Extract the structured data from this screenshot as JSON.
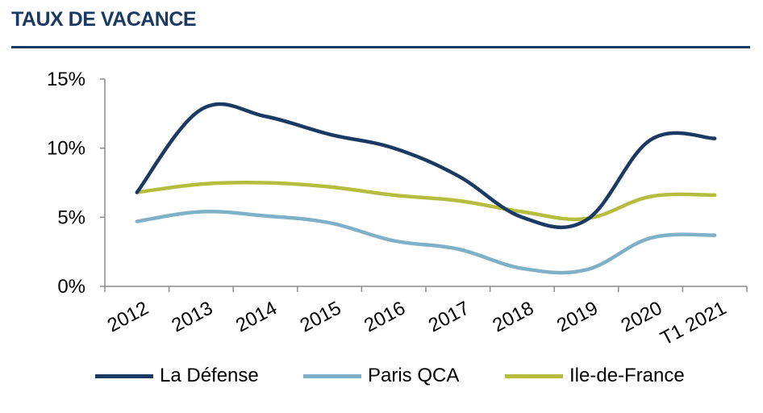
{
  "header": {
    "title": "TAUX DE VACANCE"
  },
  "chart_data": {
    "type": "line",
    "categories": [
      "2012",
      "2013",
      "2014",
      "2015",
      "2016",
      "2017",
      "2018",
      "2019",
      "2020",
      "T1 2021"
    ],
    "ylim": [
      0,
      15
    ],
    "yticks": [
      "0%",
      "5%",
      "10%",
      "15%"
    ],
    "grid": false,
    "legend_placement": "bottom",
    "series": [
      {
        "name": "La Défense",
        "color": "#1b3a63",
        "values": [
          6.8,
          12.8,
          12.3,
          11.0,
          10.0,
          8.0,
          5.0,
          4.8,
          10.6,
          10.7
        ]
      },
      {
        "name": "Paris QCA",
        "color": "#7eb0c8",
        "values": [
          4.7,
          5.4,
          5.1,
          4.6,
          3.3,
          2.7,
          1.3,
          1.2,
          3.5,
          3.7
        ]
      },
      {
        "name": "Ile-de-France",
        "color": "#b6bd3e",
        "values": [
          6.8,
          7.4,
          7.5,
          7.2,
          6.6,
          6.2,
          5.4,
          4.9,
          6.5,
          6.6
        ]
      }
    ]
  }
}
